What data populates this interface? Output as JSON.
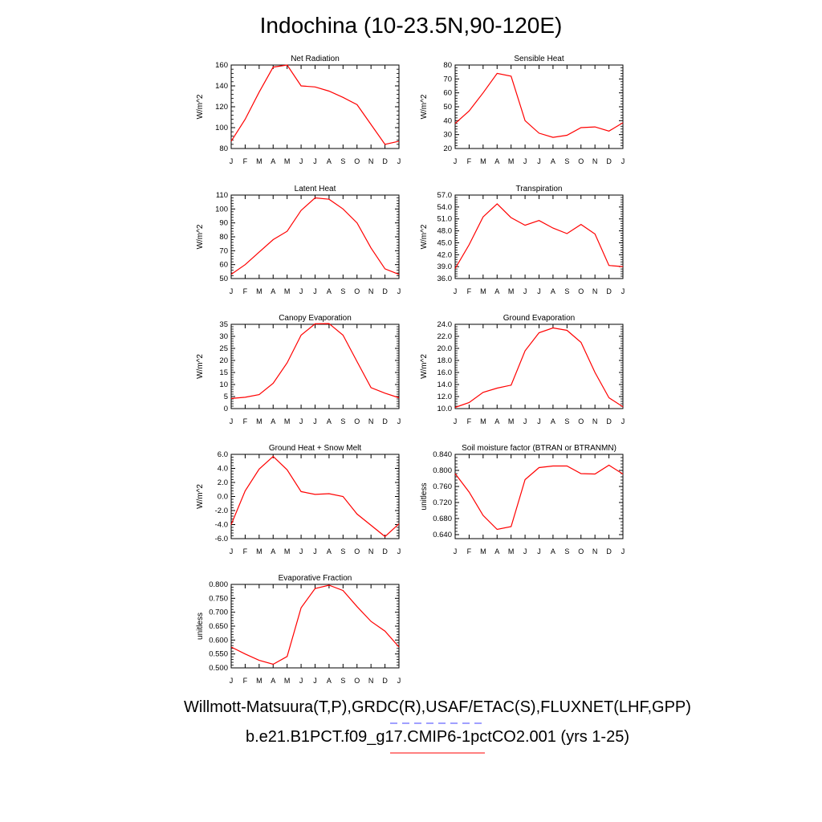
{
  "title": "Indochina (10-23.5N,90-120E)",
  "footer": {
    "line1": "Willmott-Matsuura(T,P),GRDC(R),USAF/ETAC(S),FLUXNET(LHF,GPP)",
    "line2": "b.e21.B1PCT.f09_g17.CMIP6-1pctCO2.001 (yrs 1-25)"
  },
  "colors": {
    "model_line": "#ff0000",
    "obs_line": "#4040ff"
  },
  "chart_data": [
    {
      "type": "line",
      "title": "Net Radiation",
      "ylabel": "W/m^2",
      "categories": [
        "J",
        "F",
        "M",
        "A",
        "M",
        "J",
        "J",
        "A",
        "S",
        "O",
        "N",
        "D",
        "J"
      ],
      "ylim": [
        80,
        160
      ],
      "yticks": [
        "80",
        "100",
        "120",
        "140",
        "160"
      ],
      "values": [
        87,
        108,
        134,
        158,
        160,
        140,
        139,
        135,
        129,
        122,
        103,
        84,
        87
      ]
    },
    {
      "type": "line",
      "title": "Sensible Heat",
      "ylabel": "W/m^2",
      "categories": [
        "J",
        "F",
        "M",
        "A",
        "M",
        "J",
        "J",
        "A",
        "S",
        "O",
        "N",
        "D",
        "J"
      ],
      "ylim": [
        20,
        80
      ],
      "yticks": [
        "20",
        "30",
        "40",
        "50",
        "60",
        "70",
        "80"
      ],
      "values": [
        38,
        47,
        60,
        74,
        72,
        40,
        31,
        28,
        29.5,
        35,
        35.5,
        32.5,
        38.5
      ]
    },
    {
      "type": "line",
      "title": "Latent Heat",
      "ylabel": "W/m^2",
      "categories": [
        "J",
        "F",
        "M",
        "A",
        "M",
        "J",
        "J",
        "A",
        "S",
        "O",
        "N",
        "D",
        "J"
      ],
      "ylim": [
        50,
        110
      ],
      "yticks": [
        "50",
        "60",
        "70",
        "80",
        "90",
        "100",
        "110"
      ],
      "values": [
        53,
        60,
        69,
        78,
        84,
        99,
        108,
        107,
        100,
        90,
        72,
        57,
        53
      ]
    },
    {
      "type": "line",
      "title": "Transpiration",
      "ylabel": "W/m^2",
      "categories": [
        "J",
        "F",
        "M",
        "A",
        "M",
        "J",
        "J",
        "A",
        "S",
        "O",
        "N",
        "D",
        "J"
      ],
      "ylim": [
        36,
        57
      ],
      "yticks": [
        "36.0",
        "39.0",
        "42.0",
        "45.0",
        "48.0",
        "51.0",
        "54.0",
        "57.0"
      ],
      "values": [
        38.5,
        44.5,
        51.5,
        54.8,
        51.3,
        49.4,
        50.6,
        48.7,
        47.3,
        49.6,
        47.2,
        39.3,
        39.0
      ]
    },
    {
      "type": "line",
      "title": "Canopy Evaporation",
      "ylabel": "W/m^2",
      "categories": [
        "J",
        "F",
        "M",
        "A",
        "M",
        "J",
        "J",
        "A",
        "S",
        "O",
        "N",
        "D",
        "J"
      ],
      "ylim": [
        0,
        35
      ],
      "yticks": [
        "0",
        "5",
        "10",
        "15",
        "20",
        "25",
        "30",
        "35"
      ],
      "values": [
        4.2,
        4.7,
        5.8,
        10.5,
        19,
        30.5,
        35.2,
        35.3,
        30.5,
        19.5,
        8.7,
        6.4,
        4.5
      ]
    },
    {
      "type": "line",
      "title": "Ground Evaporation",
      "ylabel": "W/m^2",
      "categories": [
        "J",
        "F",
        "M",
        "A",
        "M",
        "J",
        "J",
        "A",
        "S",
        "O",
        "N",
        "D",
        "J"
      ],
      "ylim": [
        10,
        24
      ],
      "yticks": [
        "10.0",
        "12.0",
        "14.0",
        "16.0",
        "18.0",
        "20.0",
        "22.0",
        "24.0"
      ],
      "values": [
        10.2,
        11.0,
        12.7,
        13.4,
        13.9,
        19.6,
        22.6,
        23.4,
        23.0,
        21.0,
        16.0,
        11.8,
        10.3
      ]
    },
    {
      "type": "line",
      "title": "Ground Heat + Snow Melt",
      "ylabel": "W/m^2",
      "categories": [
        "J",
        "F",
        "M",
        "A",
        "M",
        "J",
        "J",
        "A",
        "S",
        "O",
        "N",
        "D",
        "J"
      ],
      "ylim": [
        -6,
        6
      ],
      "yticks": [
        "-6.0",
        "-4.0",
        "-2.0",
        "0.0",
        "2.0",
        "4.0",
        "6.0"
      ],
      "values": [
        -4.0,
        0.8,
        3.9,
        5.7,
        3.8,
        0.7,
        0.3,
        0.4,
        0.0,
        -2.5,
        -4.1,
        -5.7,
        -3.9
      ]
    },
    {
      "type": "line",
      "title": "Soil moisture factor (BTRAN or BTRANMN)",
      "ylabel": "unitless",
      "categories": [
        "J",
        "F",
        "M",
        "A",
        "M",
        "J",
        "J",
        "A",
        "S",
        "O",
        "N",
        "D",
        "J"
      ],
      "ylim": [
        0.63,
        0.84
      ],
      "yticks": [
        "0.640",
        "0.680",
        "0.720",
        "0.760",
        "0.800",
        "0.840"
      ],
      "values": [
        0.792,
        0.746,
        0.688,
        0.653,
        0.66,
        0.777,
        0.807,
        0.811,
        0.811,
        0.792,
        0.791,
        0.813,
        0.791
      ]
    },
    {
      "type": "line",
      "title": "Evaporative Fraction",
      "ylabel": "unitless",
      "categories": [
        "J",
        "F",
        "M",
        "A",
        "M",
        "J",
        "J",
        "A",
        "S",
        "O",
        "N",
        "D",
        "J"
      ],
      "ylim": [
        0.5,
        0.8
      ],
      "yticks": [
        "0.500",
        "0.550",
        "0.600",
        "0.650",
        "0.700",
        "0.750",
        "0.800"
      ],
      "values": [
        0.575,
        0.55,
        0.527,
        0.513,
        0.541,
        0.716,
        0.785,
        0.797,
        0.778,
        0.72,
        0.667,
        0.632,
        0.575
      ]
    }
  ]
}
